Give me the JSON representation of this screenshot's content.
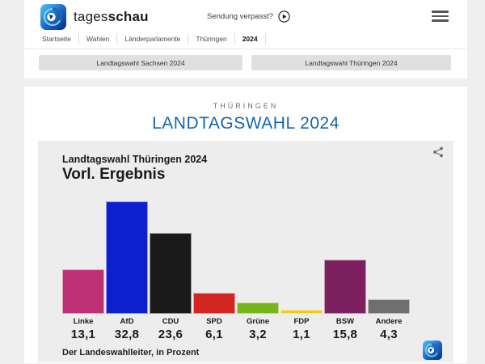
{
  "header": {
    "brand_regular": "tages",
    "brand_bold": "schau",
    "sendung_verpasst": "Sendung verpasst?",
    "breadcrumb": [
      "Startseite",
      "Wahlen",
      "Länderparlamente",
      "Thüringen",
      "2024"
    ]
  },
  "election_nav": [
    {
      "label": "Landtagswahl Sachsen 2024"
    },
    {
      "label": "Landtagswahl Thüringen 2024"
    }
  ],
  "section": {
    "kicker": "THÜRINGEN",
    "title": "LANDTAGSWAHL 2024"
  },
  "chart_data": {
    "type": "bar",
    "title": "Landtagswahl Thüringen 2024",
    "subtitle": "Vorl. Ergebnis",
    "source_note": "Der Landeswahlleiter, in Prozent",
    "unit": "Prozent",
    "ylim": [
      0,
      35
    ],
    "grid": false,
    "legend": "none",
    "categories": [
      "Linke",
      "AfD",
      "CDU",
      "SPD",
      "Grüne",
      "FDP",
      "BSW",
      "Andere"
    ],
    "values": [
      13.1,
      32.8,
      23.6,
      6.1,
      3.2,
      1.1,
      15.8,
      4.3
    ],
    "display_values": [
      "13,1",
      "32,8",
      "23,6",
      "6,1",
      "3,2",
      "1,1",
      "15,8",
      "4,3"
    ],
    "bar_colors": [
      "#be3075",
      "#0c20ce",
      "#1a1a1b",
      "#d22622",
      "#76b41c",
      "#f2c71e",
      "#7d2060",
      "#6f6f6f"
    ]
  },
  "colors": {
    "accent_blue": "#1266ad",
    "card_bg": "#ededed",
    "page_bg": "#efefef"
  }
}
